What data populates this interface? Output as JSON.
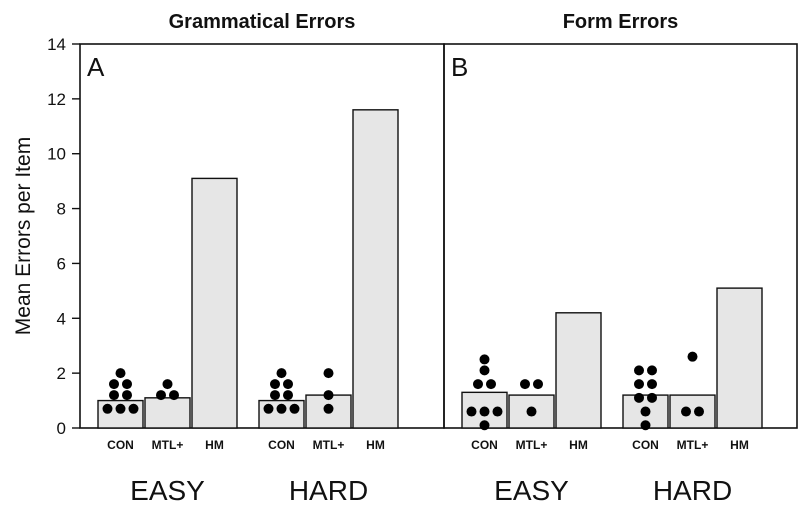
{
  "y_axis_label": "Mean Errors per Item",
  "y_ticks": [
    "0",
    "2",
    "4",
    "6",
    "8",
    "10",
    "12",
    "14"
  ],
  "colors": {
    "bar_fill": "#e6e6e6",
    "stroke": "#111111",
    "dot": "#000000"
  },
  "chart_data": [
    {
      "type": "bar",
      "panel": "A",
      "title": "Grammatical  Errors",
      "ylabel": "Mean Errors per Item",
      "ylim": [
        0,
        14
      ],
      "y_ticks": [
        0,
        2,
        4,
        6,
        8,
        10,
        12,
        14
      ],
      "groups": [
        {
          "label": "EASY",
          "bars": [
            {
              "label": "CON",
              "value": 1.0,
              "points": [
                2.0,
                1.6,
                1.6,
                1.2,
                1.2,
                0.7,
                0.7,
                0.7
              ]
            },
            {
              "label": "MTL+",
              "value": 1.1,
              "points": [
                1.6,
                1.2,
                1.2
              ]
            },
            {
              "label": "HM",
              "value": 9.1,
              "points": []
            }
          ]
        },
        {
          "label": "HARD",
          "bars": [
            {
              "label": "CON",
              "value": 1.0,
              "points": [
                2.0,
                1.6,
                1.6,
                1.2,
                1.2,
                0.7,
                0.7,
                0.7
              ]
            },
            {
              "label": "MTL+",
              "value": 1.2,
              "points": [
                2.0,
                1.2,
                0.7
              ]
            },
            {
              "label": "HM",
              "value": 11.6,
              "points": []
            }
          ]
        }
      ]
    },
    {
      "type": "bar",
      "panel": "B",
      "title": "Form Errors",
      "ylim": [
        0,
        14
      ],
      "y_ticks": [
        0,
        2,
        4,
        6,
        8,
        10,
        12,
        14
      ],
      "groups": [
        {
          "label": "EASY",
          "bars": [
            {
              "label": "CON",
              "value": 1.3,
              "points": [
                2.5,
                2.1,
                1.6,
                1.6,
                0.6,
                0.6,
                0.6,
                0.1
              ]
            },
            {
              "label": "MTL+",
              "value": 1.2,
              "points": [
                1.6,
                1.6,
                0.6
              ]
            },
            {
              "label": "HM",
              "value": 4.2,
              "points": []
            }
          ]
        },
        {
          "label": "HARD",
          "bars": [
            {
              "label": "CON",
              "value": 1.2,
              "points": [
                2.1,
                2.1,
                1.6,
                1.6,
                1.1,
                1.1,
                0.6,
                0.1
              ]
            },
            {
              "label": "MTL+",
              "value": 1.2,
              "points": [
                2.6,
                0.6,
                0.6
              ]
            },
            {
              "label": "HM",
              "value": 5.1,
              "points": []
            }
          ]
        }
      ]
    }
  ]
}
